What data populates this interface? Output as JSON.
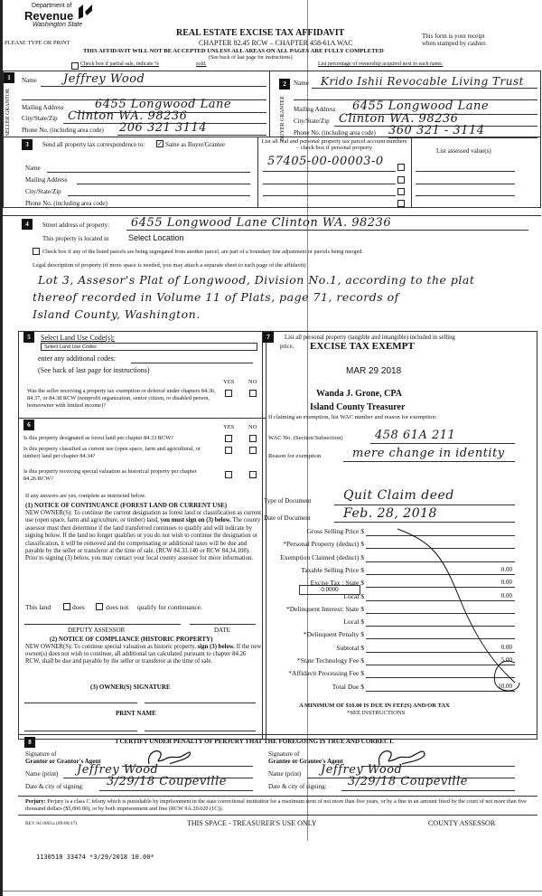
{
  "header": {
    "logo_dept": "Department of",
    "logo_revenue": "Revenue",
    "logo_state": "Washington State",
    "title": "REAL ESTATE EXCISE TAX AFFIDAVIT",
    "chapter": "CHAPTER 82.45 RCW – CHAPTER 458-61A WAC",
    "please": "PLEASE TYPE OR PRINT",
    "receipt1": "This form is your receipt",
    "receipt2": "when stamped by cashier.",
    "warning": "THIS AFFIDAVIT WILL NOT BE ACCEPTED UNLESS ALL AREAS ON ALL PAGES ARE FULLY COMPLETED",
    "see_back": "(See back of last page for instructions)",
    "partial_sale": "Check box if partial sale, indicate %",
    "sold": "sold.",
    "ownership_pct": "List percentage of ownership acquired next to each name."
  },
  "seller": {
    "num": "1",
    "side": "SELLER GRANTOR",
    "name_label": "Name",
    "name": "Jeffrey Wood",
    "mail_label": "Mailing Address",
    "mail": "6455 Longwood Lane",
    "city_label": "City/State/Zip",
    "city": "Clinton WA. 98236",
    "phone_label": "Phone No. (including area code)",
    "phone": "206 321 3114"
  },
  "buyer": {
    "num": "2",
    "side": "BUYER GRANTEE",
    "name_label": "Name",
    "name": "Krido Ishii Revocable Living Trust",
    "mail_label": "Mailing Address",
    "mail": "6455 Longwood Lane",
    "city_label": "City/State/Zip",
    "city": "Clinton WA. 98236",
    "phone_label": "Phone No. (including area code)",
    "phone": "360 321 - 3114"
  },
  "sec3": {
    "num": "3",
    "send": "Send all property tax correspondence to:",
    "same": "Same as Buyer/Grantee",
    "same_checked": true,
    "name_label": "Name",
    "mail_label": "Mailing Address",
    "city_label": "City/State/Zip",
    "phone_label": "Phone No. (including area code)",
    "parcel_head": "List all real and personal property tax parcel account numbers – check box if personal property",
    "parcel": "57405-00-00003-0",
    "assessed_head": "List assessed value(s)"
  },
  "sec4": {
    "num": "4",
    "street_label": "Street address of property:",
    "street": "6455 Longwood Lane Clinton WA. 98236",
    "located": "This property is located in",
    "location": "Select Location",
    "segregated": "Check box if any of the listed parcels are being segregated from another parcel, are part of a boundary line adjustment or parcels being merged.",
    "legal_label": "Legal description of property (if more space is needed, you may attach a separate sheet to each page of the affidavit)",
    "legal1": "Lot 3, Assesor's Plat of Longwood, Division No.1, according to the plat",
    "legal2": "thereof recorded in Volume 11 of Plats, page 71, records of",
    "legal3": "Island County, Washington."
  },
  "sec5": {
    "num": "5",
    "land_use": "Select Land Use Code(s):",
    "land_use_select": "Select Land Use Codes",
    "additional": "enter any additional codes:",
    "see_back": "(See back of last page for instructions)",
    "yes": "YES",
    "no": "NO",
    "q1": "Was the seller receiving a property tax exemption or deferral under chapters 84.36, 84.37, or 84.38 RCW (nonprofit organization, senior citizen, or disabled person, homeowner with limited income)?"
  },
  "sec6": {
    "num": "6",
    "yes": "YES",
    "no": "NO",
    "q1": "Is this property designated as forest land per chapter 84.33 RCW?",
    "q2": "Is this property classified as current use (open space, farm and agricultural, or timber) land per chapter 84.34?",
    "q3": "Is this property receiving special valuation as historical property per chapter 84.26 RCW?",
    "if_yes": "If any answers are yes, complete as instructed below.",
    "n1_title": "(1) NOTICE OF CONTINUANCE (FOREST LAND OR CURRENT USE)",
    "n1_text_a": "NEW OWNER(S): To continue the current designation as forest land or classification as current use (open space, farm and agriculture, or timber) land,",
    "n1_bold": "you must sign on (3) below.",
    "n1_text_b": "The county assessor must then determine if the land transferred continues to qualify and will indicate by signing below. If the land no longer qualifies or you do not wish to continue the designation or classification, it will be removed and the compensating or additional taxes will be due and payable by the seller or transferor at the time of sale. (RCW 84.33.140 or RCW 84.34.108). Prior to signing (3) below, you may contact your local county assessor for more information.",
    "this_land": "This land",
    "does": "does",
    "does_not": "does not",
    "qualify": "qualify for continuance.",
    "deputy": "DEPUTY ASSESSOR",
    "date": "DATE",
    "n2_title": "(2) NOTICE OF COMPLIANCE (HISTORIC PROPERTY)",
    "n2_text_a": "NEW OWNER(S): To continue special valuation as historic property,",
    "n2_bold": "sign (3) below.",
    "n2_text_b": "If the new owner(s) does not wish to continue, all additional tax calculated pursuant to chapter 84.26 RCW, shall be due and payable by the seller or transferor at the time of sale.",
    "owner_sig": "(3) OWNER(S) SIGNATURE",
    "print_name": "PRINT NAME"
  },
  "sec7": {
    "num": "7",
    "list_all": "List all personal property (tangible and intangible) included in selling",
    "price": "price.",
    "stamp_exempt": "EXCISE TAX EXEMPT",
    "stamp_date": "MAR 29 2018",
    "stamp_name": "Wanda J. Grone, CPA",
    "stamp_title": "Island County Treasurer",
    "claiming": "If claiming an exemption, list WAC number and reason for exemption:",
    "wac_label": "WAC No. (Section/Subsection)",
    "wac": "458 61A 211",
    "reason_label": "Reason for exemption",
    "reason": "mere change in identity",
    "doc_type_label": "Type of Document",
    "doc_type": "Quit Claim deed",
    "doc_date_label": "Date of Document",
    "doc_date": "Feb. 28, 2018",
    "rows": [
      {
        "label": "Gross Selling Price $",
        "value": ""
      },
      {
        "label": "*Personal Property (deduct) $",
        "value": ""
      },
      {
        "label": "Exemption Claimed (deduct) $",
        "value": ""
      },
      {
        "label": "Taxable Selling Price $",
        "value": "0.00"
      },
      {
        "label": "Excise Tax : State $",
        "value": "0.00"
      },
      {
        "label": "Local $",
        "value": "0.00"
      },
      {
        "label": "*Delinquent Interest: State $",
        "value": ""
      },
      {
        "label": "Local $",
        "value": ""
      },
      {
        "label": "*Delinquent Penalty $",
        "value": ""
      },
      {
        "label": "Subtotal $",
        "value": "0.00"
      },
      {
        "label": "*State Technology Fee $",
        "value": "5.00"
      },
      {
        "label": "*Affidavit Processing Fee $",
        "value": ""
      },
      {
        "label": "Total Due $",
        "value": "10.00"
      }
    ],
    "local_rate": "0.0000",
    "minimum": "A MINIMUM OF $10.00 IS DUE IN FEE(S) AND/OR TAX",
    "see_instr": "*SEE INSTRUCTIONS"
  },
  "sec8": {
    "num": "8",
    "certify": "I CERTIFY UNDER PENALTY OF PERJURY THAT THE FOREGOING IS TRUE AND CORRECT.",
    "sig_of": "Signature of",
    "grantor_agent": "Grantor or Grantor's Agent",
    "grantee_agent": "Grantee or Grantee's Agent",
    "name_print": "Name (print)",
    "date_city": "Date & city of signing:",
    "grantor_name": "Jeffrey Wood",
    "grantor_date": "3/29/18 Coupeville",
    "grantee_name": "Jeffrey Wood",
    "grantee_date": "3/29/18 Coupeville"
  },
  "footer": {
    "perjury_b": "Perjury:",
    "perjury": "Perjury is a class C felony which is punishable by imprisonment in the state correctional institution for a maximum term of not more than five years, or by a fine in an amount fixed by the court of not more than five thousand dollars ($5,000.00), or by both imprisonment and fine (RCW 9A.20.020 (1C)).",
    "rev": "REV 84 0001a (09/06/17)",
    "treasurer": "THIS SPACE - TREASURER'S USE ONLY",
    "assessor": "COUNTY ASSESSOR",
    "receipt_line": "1130510 33474 *3/29/2018 10.00*"
  }
}
